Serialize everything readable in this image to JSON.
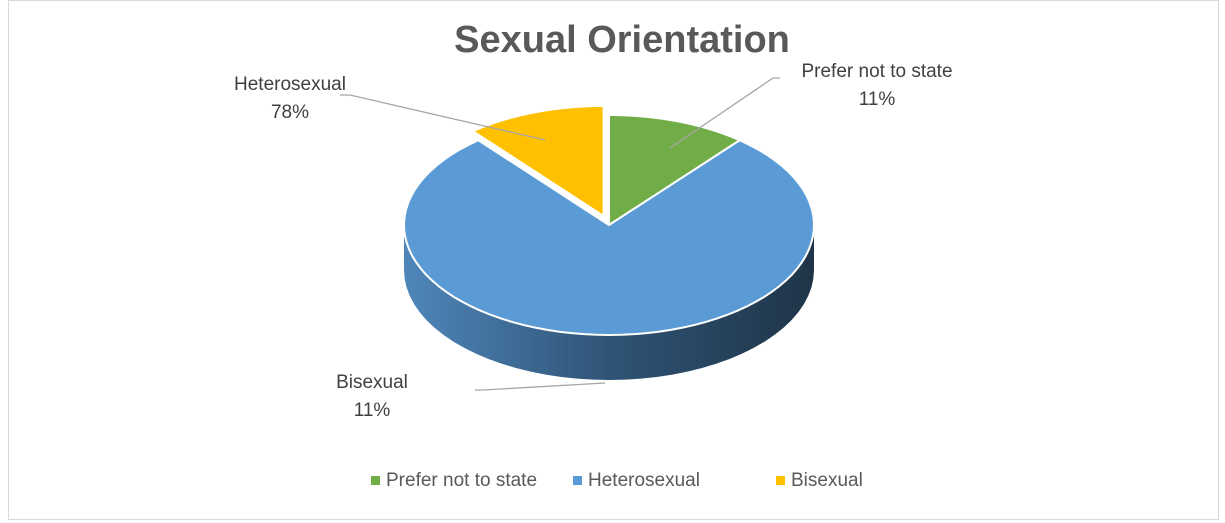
{
  "chart_data": {
    "type": "pie",
    "title": "Sexual Orientation",
    "categories": [
      "Prefer not to state",
      "Heterosexual",
      "Bisexual"
    ],
    "values": [
      11,
      78,
      11
    ],
    "value_labels": [
      "11%",
      "78%",
      "11%"
    ],
    "colors": [
      "#70ad47",
      "#5b9bd5",
      "#ffc000"
    ],
    "legend": "bottom"
  }
}
